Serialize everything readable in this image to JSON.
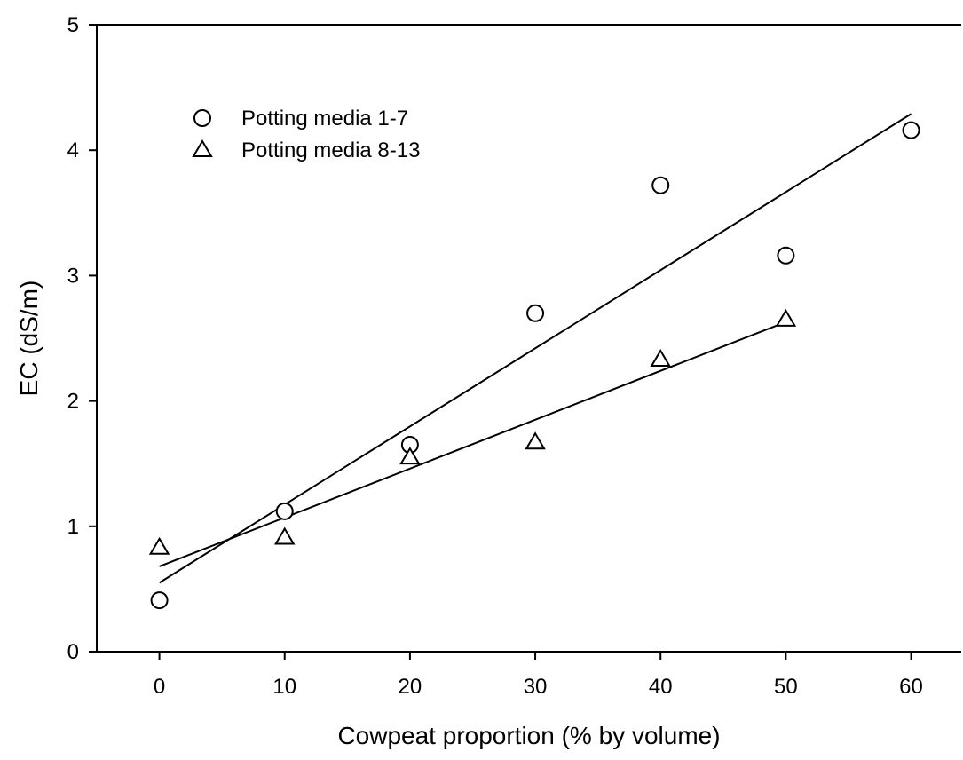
{
  "chart_data": {
    "type": "scatter",
    "xlabel": "Cowpeat proportion (% by volume)",
    "ylabel": "EC (dS/m)",
    "xlim": [
      -5,
      64
    ],
    "ylim": [
      0,
      5
    ],
    "x_ticks": [
      0,
      10,
      20,
      30,
      40,
      50,
      60
    ],
    "y_ticks": [
      0,
      1,
      2,
      3,
      4,
      5
    ],
    "grid": false,
    "legend_position": "top-left",
    "series": [
      {
        "name": "Potting media 1-7",
        "marker": "circle",
        "points": [
          {
            "x": 0,
            "y": 0.41
          },
          {
            "x": 10,
            "y": 1.12
          },
          {
            "x": 20,
            "y": 1.65
          },
          {
            "x": 30,
            "y": 2.7
          },
          {
            "x": 40,
            "y": 3.72
          },
          {
            "x": 50,
            "y": 3.16
          },
          {
            "x": 60,
            "y": 4.16
          }
        ],
        "fit": {
          "x": [
            0,
            60
          ],
          "y": [
            0.55,
            4.29
          ]
        }
      },
      {
        "name": "Potting media 8-13",
        "marker": "triangle",
        "points": [
          {
            "x": 0,
            "y": 0.83
          },
          {
            "x": 10,
            "y": 0.91
          },
          {
            "x": 20,
            "y": 1.55
          },
          {
            "x": 30,
            "y": 1.67
          },
          {
            "x": 40,
            "y": 2.33
          },
          {
            "x": 50,
            "y": 2.65
          }
        ],
        "fit": {
          "x": [
            0,
            50
          ],
          "y": [
            0.68,
            2.63
          ]
        }
      }
    ]
  }
}
